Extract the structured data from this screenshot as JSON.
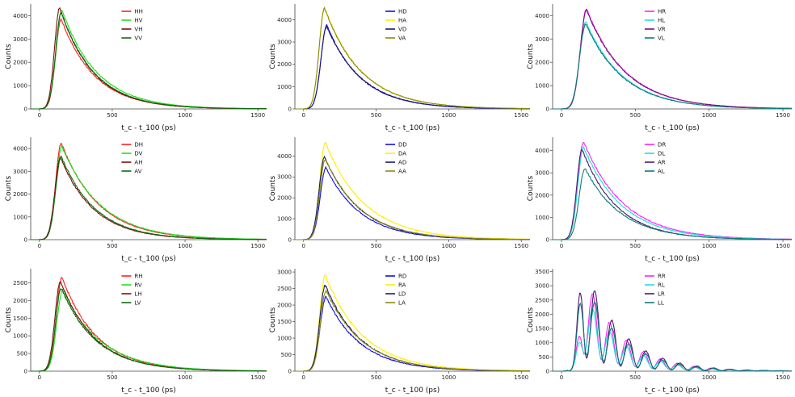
{
  "chart_data": [
    {
      "type": "line",
      "ylabel": "Counts",
      "xlabel": "t_c - t_100 (ps)",
      "ylim": [
        0,
        4500
      ],
      "xlim": [
        -60,
        1560
      ],
      "xticks": [
        0,
        500,
        1000,
        1500
      ],
      "yticks": [
        0,
        1000,
        2000,
        3000,
        4000
      ],
      "series": [
        {
          "name": "HH",
          "color": "#ff2020",
          "peak": 3850,
          "peak_x": 150,
          "tau": 230,
          "rise": 38
        },
        {
          "name": "HV",
          "color": "#22dd22",
          "peak": 4250,
          "peak_x": 155,
          "tau": 240,
          "rise": 40
        },
        {
          "name": "VH",
          "color": "#7a1010",
          "peak": 4350,
          "peak_x": 140,
          "tau": 225,
          "rise": 36
        },
        {
          "name": "VV",
          "color": "#106a10",
          "peak": 4150,
          "peak_x": 150,
          "tau": 230,
          "rise": 38
        }
      ]
    },
    {
      "type": "line",
      "ylabel": "Counts",
      "xlabel": "t_c - t_100 (ps)",
      "ylim": [
        0,
        4700
      ],
      "xlim": [
        -60,
        1560
      ],
      "xticks": [
        0,
        500,
        1000,
        1500
      ],
      "yticks": [
        0,
        1000,
        2000,
        3000,
        4000
      ],
      "series": [
        {
          "name": "HD",
          "color": "#1010dd",
          "peak": 3750,
          "peak_x": 160,
          "tau": 235,
          "rise": 40
        },
        {
          "name": "HA",
          "color": "#ffee00",
          "peak": 4550,
          "peak_x": 145,
          "tau": 255,
          "rise": 38
        },
        {
          "name": "VD",
          "color": "#1a1a70",
          "peak": 3700,
          "peak_x": 160,
          "tau": 240,
          "rise": 40
        },
        {
          "name": "VA",
          "color": "#8a8a10",
          "peak": 4500,
          "peak_x": 145,
          "tau": 255,
          "rise": 38
        }
      ]
    },
    {
      "type": "line",
      "ylabel": "Counts",
      "xlabel": "t_c - t_100 (ps)",
      "ylim": [
        0,
        4500
      ],
      "xlim": [
        -60,
        1560
      ],
      "xticks": [
        0,
        500,
        1000,
        1500
      ],
      "yticks": [
        0,
        1000,
        2000,
        3000,
        4000
      ],
      "series": [
        {
          "name": "HR",
          "color": "#ff22ff",
          "peak": 4300,
          "peak_x": 170,
          "tau": 265,
          "rise": 42
        },
        {
          "name": "HL",
          "color": "#22dddd",
          "peak": 3750,
          "peak_x": 165,
          "tau": 255,
          "rise": 42
        },
        {
          "name": "VR",
          "color": "#7a107a",
          "peak": 4250,
          "peak_x": 170,
          "tau": 265,
          "rise": 42
        },
        {
          "name": "VL",
          "color": "#107a7a",
          "peak": 3650,
          "peak_x": 165,
          "tau": 255,
          "rise": 42
        }
      ]
    },
    {
      "type": "line",
      "ylabel": "Counts",
      "xlabel": "t_c - t_100 (ps)",
      "ylim": [
        0,
        4500
      ],
      "xlim": [
        -60,
        1560
      ],
      "xticks": [
        0,
        500,
        1000,
        1500
      ],
      "yticks": [
        0,
        1000,
        2000,
        3000,
        4000
      ],
      "series": [
        {
          "name": "DH",
          "color": "#ff2020",
          "peak": 4250,
          "peak_x": 150,
          "tau": 255,
          "rise": 38
        },
        {
          "name": "DV",
          "color": "#22dd22",
          "peak": 4100,
          "peak_x": 155,
          "tau": 265,
          "rise": 40
        },
        {
          "name": "AH",
          "color": "#7a1010",
          "peak": 3600,
          "peak_x": 145,
          "tau": 230,
          "rise": 38
        },
        {
          "name": "AV",
          "color": "#106a10",
          "peak": 3650,
          "peak_x": 150,
          "tau": 235,
          "rise": 38
        }
      ]
    },
    {
      "type": "line",
      "ylabel": "Counts",
      "xlabel": "t_c - t_100 (ps)",
      "ylim": [
        0,
        4900
      ],
      "xlim": [
        -60,
        1560
      ],
      "xticks": [
        0,
        500,
        1000,
        1500
      ],
      "yticks": [
        0,
        1000,
        2000,
        3000,
        4000
      ],
      "series": [
        {
          "name": "DD",
          "color": "#1010dd",
          "peak": 3450,
          "peak_x": 155,
          "tau": 240,
          "rise": 40
        },
        {
          "name": "DA",
          "color": "#ffee00",
          "peak": 4650,
          "peak_x": 150,
          "tau": 270,
          "rise": 38
        },
        {
          "name": "AD",
          "color": "#1a1a70",
          "peak": 3950,
          "peak_x": 145,
          "tau": 245,
          "rise": 38
        },
        {
          "name": "AA",
          "color": "#8a8a10",
          "peak": 3850,
          "peak_x": 150,
          "tau": 250,
          "rise": 38
        }
      ]
    },
    {
      "type": "line",
      "ylabel": "Counts",
      "xlabel": "t_c - t_100 (ps)",
      "ylim": [
        0,
        4600
      ],
      "xlim": [
        -60,
        1560
      ],
      "xticks": [
        0,
        500,
        1000,
        1500
      ],
      "yticks": [
        0,
        1000,
        2000,
        3000,
        4000
      ],
      "series": [
        {
          "name": "DR",
          "color": "#ff22ff",
          "peak": 4400,
          "peak_x": 150,
          "tau": 270,
          "rise": 38
        },
        {
          "name": "DL",
          "color": "#22dddd",
          "peak": 4150,
          "peak_x": 150,
          "tau": 260,
          "rise": 38
        },
        {
          "name": "AR",
          "color": "#4a1a6a",
          "peak": 4050,
          "peak_x": 140,
          "tau": 235,
          "rise": 36
        },
        {
          "name": "AL",
          "color": "#107a7a",
          "peak": 3200,
          "peak_x": 160,
          "tau": 245,
          "rise": 40
        }
      ]
    },
    {
      "type": "line",
      "ylabel": "Counts",
      "xlabel": "t_c - t_100 (ps)",
      "ylim": [
        0,
        2900
      ],
      "xlim": [
        -60,
        1560
      ],
      "xticks": [
        0,
        500,
        1000,
        1500
      ],
      "yticks": [
        0,
        500,
        1000,
        1500,
        2000,
        2500
      ],
      "series": [
        {
          "name": "RH",
          "color": "#ff2020",
          "peak": 2650,
          "peak_x": 155,
          "tau": 240,
          "rise": 38
        },
        {
          "name": "RV",
          "color": "#22dd22",
          "peak": 2300,
          "peak_x": 160,
          "tau": 260,
          "rise": 40
        },
        {
          "name": "LH",
          "color": "#7a1010",
          "peak": 2550,
          "peak_x": 145,
          "tau": 235,
          "rise": 38
        },
        {
          "name": "LV",
          "color": "#106a10",
          "peak": 2350,
          "peak_x": 150,
          "tau": 240,
          "rise": 38
        }
      ]
    },
    {
      "type": "line",
      "ylabel": "Counts",
      "xlabel": "t_c - t_100 (ps)",
      "ylim": [
        0,
        3100
      ],
      "xlim": [
        -60,
        1560
      ],
      "xticks": [
        0,
        500,
        1000,
        1500
      ],
      "yticks": [
        0,
        500,
        1000,
        1500,
        2000,
        2500,
        3000
      ],
      "series": [
        {
          "name": "RD",
          "color": "#1010dd",
          "peak": 2250,
          "peak_x": 155,
          "tau": 240,
          "rise": 40
        },
        {
          "name": "RA",
          "color": "#ffee00",
          "peak": 2900,
          "peak_x": 150,
          "tau": 260,
          "rise": 38
        },
        {
          "name": "LD",
          "color": "#1a1a70",
          "peak": 2600,
          "peak_x": 150,
          "tau": 245,
          "rise": 38
        },
        {
          "name": "LA",
          "color": "#8a8a10",
          "peak": 2450,
          "peak_x": 155,
          "tau": 250,
          "rise": 38
        }
      ]
    },
    {
      "type": "line",
      "ylabel": "Counts",
      "xlabel": "t_c - t_100 (ps)",
      "ylim": [
        0,
        3600
      ],
      "xlim": [
        -60,
        1560
      ],
      "xticks": [
        0,
        500,
        1000,
        1500
      ],
      "yticks": [
        0,
        500,
        1000,
        1500,
        2000,
        2500,
        3000,
        3500
      ],
      "series": [
        {
          "name": "RR",
          "color": "#ff22ff",
          "peak": 2700,
          "peak_x": 165,
          "tau": 250,
          "rise": 38,
          "osc_amp": 0.55,
          "osc_period": 115,
          "osc_phase": 0.9
        },
        {
          "name": "RL",
          "color": "#22dddd",
          "peak": 2200,
          "peak_x": 165,
          "tau": 250,
          "rise": 38,
          "osc_amp": 0.5,
          "osc_period": 115,
          "osc_phase": 0.9
        },
        {
          "name": "LR",
          "color": "#4a1a6a",
          "peak": 3100,
          "peak_x": 150,
          "tau": 250,
          "rise": 36,
          "osc_amp": 0.6,
          "osc_period": 115,
          "osc_phase": 0.1
        },
        {
          "name": "LL",
          "color": "#107a7a",
          "peak": 2700,
          "peak_x": 150,
          "tau": 250,
          "rise": 36,
          "osc_amp": 0.55,
          "osc_period": 115,
          "osc_phase": 0.1
        }
      ]
    }
  ]
}
